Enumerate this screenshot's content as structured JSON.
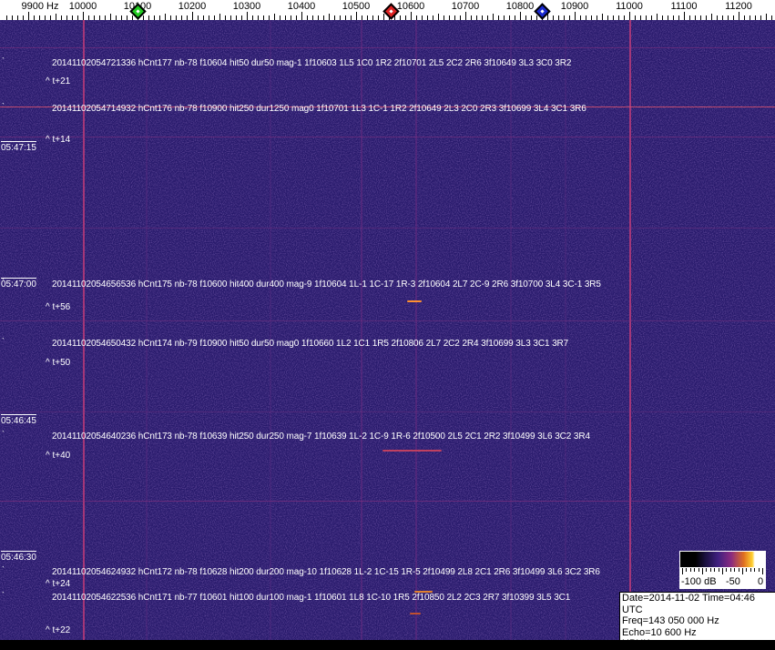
{
  "axis": {
    "unit_label": "9900 Hz",
    "labels": [
      "10000",
      "10100",
      "10200",
      "10300",
      "10400",
      "10500",
      "10600",
      "10700",
      "10800",
      "10900",
      "11000",
      "11100",
      "11200"
    ],
    "markers": [
      {
        "name": "green",
        "freq": 10100,
        "color": "#22cc22"
      },
      {
        "name": "red",
        "freq": 10563,
        "color": "#dd2222"
      },
      {
        "name": "blue",
        "freq": 10840,
        "color": "#1a2ad0"
      }
    ]
  },
  "time_labels": [
    "05:47:15",
    "05:47:00",
    "05:46:45",
    "05:46:30"
  ],
  "annotations": [
    {
      "text": "20141102054721336 hCnt177 nb-78 f10604 hit50 dur50 mag-1 1f10603 1L5 1C0 1R2 2f10701 2L5 2C2 2R6 3f10649 3L3 3C0 3R2",
      "offset": "^ t+21"
    },
    {
      "text": "20141102054714932 hCnt176 nb-78 f10900 hit250 dur1250 mag0 1f10701 1L3 1C-1 1R2 2f10649 2L3 2C0 2R3 3f10699 3L4 3C1 3R6",
      "offset": "^ t+14"
    },
    {
      "text": "20141102054656536 hCnt175 nb-78 f10600 hit400 dur400 mag-9 1f10604 1L-1 1C-17 1R-3 2f10604 2L7 2C-9 2R6 3f10700 3L4 3C-1 3R5",
      "offset": "^ t+56"
    },
    {
      "text": "20141102054650432 hCnt174 nb-79 f10900 hit50 dur50 mag0 1f10660 1L2 1C1 1R5 2f10806 2L7 2C2 2R4 3f10699 3L3 3C1 3R7",
      "offset": "^ t+50"
    },
    {
      "text": "20141102054640236 hCnt173 nb-78 f10639 hit250 dur250 mag-7 1f10639 1L-2 1C-9 1R-6 2f10500 2L5 2C1 2R2 3f10499 3L6 3C2 3R4",
      "offset": "^ t+40"
    },
    {
      "text": "20141102054624932 hCnt172 nb-78 f10628 hit200 dur200 mag-10 1f10628 1L-2 1C-15 1R-5 2f10499 2L8 2C1 2R6 3f10499 3L6 3C2 3R6",
      "offset": "^ t+24"
    },
    {
      "text": "20141102054622536 hCnt171 nb-77 f10601 hit100 dur100 mag-1 1f10601 1L8 1C-10 1R5 2f10850 2L2 2C3 2R7 3f10399 3L5 3C1",
      "offset": "^ t+22"
    }
  ],
  "colorbar": {
    "labels": [
      "-100 dB",
      "-50",
      "0"
    ]
  },
  "info": {
    "date_time": "Date=2014-11-02 Time=04:46 UTC",
    "freq": "Freq=143 050 000 Hz",
    "echo": "Echo=10 600 Hz",
    "station": "HPHK"
  }
}
